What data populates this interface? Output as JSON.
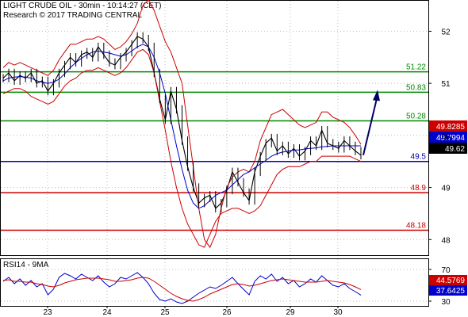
{
  "header": {
    "title": "LIGHT CRUDE OIL - 30min - 10:14:27 (CET)",
    "subtitle": "Research © 2017 TRADING CENTRAL"
  },
  "colors": {
    "price": "#000000",
    "bollinger": "#cc0000",
    "moving_average": "#0000cc",
    "resistance": "#008800",
    "pivot": "#0000aa",
    "support": "#cc0000",
    "arrow": "#000066",
    "grid": "#bbbbbb",
    "rsi": "#0000cc",
    "rsi_ma": "#cc0000"
  },
  "chart_data": [
    {
      "type": "line",
      "title": "LIGHT CRUDE OIL - 30min",
      "x_ticks": [
        "23",
        "24",
        "25",
        "26",
        "29",
        "30"
      ],
      "y_ticks": [
        48,
        49,
        50,
        51,
        52
      ],
      "ylim": [
        47.7,
        52.6
      ],
      "grid": true,
      "levels": [
        {
          "label": "51.22",
          "value": 51.22,
          "kind": "resistance"
        },
        {
          "label": "50.83",
          "value": 50.83,
          "kind": "resistance"
        },
        {
          "label": "50.28",
          "value": 50.28,
          "kind": "resistance"
        },
        {
          "label": "49.5",
          "value": 49.5,
          "kind": "pivot"
        },
        {
          "label": "48.9",
          "value": 48.9,
          "kind": "support"
        },
        {
          "label": "48.18",
          "value": 48.18,
          "kind": "support"
        }
      ],
      "price_tags": [
        {
          "label": "49.8285",
          "value": 49.8285,
          "kind": "bollinger-upper"
        },
        {
          "label": "49.7994",
          "value": 49.7994,
          "kind": "moving-average"
        },
        {
          "label": "49.62",
          "value": 49.62,
          "kind": "last-price"
        }
      ],
      "series": [
        {
          "values": [
            51.1,
            51.2,
            51.05,
            51.15,
            51.1,
            51.2,
            51.0,
            51.05,
            50.85,
            51.0,
            51.2,
            51.35,
            51.5,
            51.4,
            51.55,
            51.6,
            51.5,
            51.7,
            51.55,
            51.4,
            51.35,
            51.5,
            51.6,
            51.75,
            51.9,
            51.85,
            51.7,
            51.2,
            50.7,
            50.3,
            50.85,
            50.5,
            49.9,
            49.4,
            49.0,
            48.7,
            48.8,
            48.85,
            48.6,
            48.7,
            48.95,
            49.3,
            49.1,
            48.9,
            48.75,
            49.3,
            49.6,
            49.85,
            49.95,
            49.7,
            49.8,
            49.65,
            49.75,
            49.6,
            49.7,
            49.9,
            49.8,
            50.1,
            49.85,
            49.8,
            49.75,
            49.9,
            49.8,
            49.7,
            49.62
          ]
        },
        {
          "values": [
            51.3,
            51.4,
            51.35,
            51.4,
            51.35,
            51.3,
            51.25,
            51.2,
            51.15,
            51.25,
            51.45,
            51.6,
            51.75,
            51.75,
            51.8,
            51.85,
            51.85,
            51.9,
            51.85,
            51.75,
            51.65,
            51.7,
            51.8,
            51.95,
            52.15,
            52.5,
            52.6,
            52.4,
            52.1,
            51.8,
            51.6,
            51.3,
            51.0,
            50.2,
            49.4,
            48.6,
            48.0,
            47.85,
            48.1,
            48.6,
            49.0,
            49.2,
            49.3,
            49.35,
            49.3,
            49.5,
            49.9,
            50.15,
            50.4,
            50.45,
            50.5,
            50.4,
            50.3,
            50.2,
            50.15,
            50.2,
            50.25,
            50.45,
            50.45,
            50.35,
            50.3,
            50.25,
            50.15,
            50.0,
            49.8285
          ]
        },
        {
          "values": [
            50.8,
            50.85,
            50.9,
            50.9,
            50.85,
            50.75,
            50.7,
            50.65,
            50.6,
            50.65,
            50.8,
            50.95,
            51.05,
            51.1,
            51.2,
            51.25,
            51.25,
            51.3,
            51.25,
            51.2,
            51.15,
            51.2,
            51.3,
            51.45,
            51.6,
            51.65,
            51.55,
            51.2,
            50.65,
            50.1,
            49.5,
            49.0,
            48.6,
            48.3,
            48.1,
            47.9,
            47.85,
            48.1,
            48.35,
            48.5,
            48.55,
            48.6,
            48.6,
            48.55,
            48.5,
            48.55,
            48.65,
            48.85,
            49.05,
            49.25,
            49.35,
            49.4,
            49.4,
            49.4,
            49.45,
            49.5,
            49.5,
            49.6,
            49.6,
            49.6,
            49.6,
            49.6,
            49.6,
            49.55,
            49.5
          ]
        },
        {
          "values": [
            51.05,
            51.1,
            51.12,
            51.13,
            51.12,
            51.1,
            51.05,
            51.02,
            51.0,
            51.02,
            51.08,
            51.18,
            51.3,
            51.4,
            51.48,
            51.55,
            51.6,
            51.62,
            51.6,
            51.58,
            51.55,
            51.52,
            51.55,
            51.62,
            51.7,
            51.75,
            51.7,
            51.5,
            51.2,
            50.8,
            50.3,
            49.8,
            49.35,
            48.95,
            48.7,
            48.6,
            48.65,
            48.75,
            48.85,
            48.9,
            48.95,
            49.05,
            49.15,
            49.25,
            49.3,
            49.38,
            49.45,
            49.52,
            49.6,
            49.65,
            49.68,
            49.7,
            49.72,
            49.72,
            49.74,
            49.75,
            49.76,
            49.78,
            49.79,
            49.8,
            49.8,
            49.8,
            49.8,
            49.8,
            49.7994
          ]
        }
      ]
    },
    {
      "type": "line",
      "title": "RSI14 - 9MA",
      "y_ticks": [
        30,
        70
      ],
      "ylim": [
        24,
        84
      ],
      "grid": true,
      "price_tags": [
        {
          "label": "44.5769",
          "value": 44.5769,
          "kind": "rsi-ma"
        },
        {
          "label": "37.6425",
          "value": 37.6425,
          "kind": "rsi"
        }
      ],
      "series": [
        {
          "values": [
            55,
            60,
            52,
            58,
            50,
            56,
            48,
            52,
            38,
            45,
            60,
            65,
            62,
            58,
            64,
            60,
            56,
            62,
            54,
            48,
            52,
            60,
            58,
            62,
            66,
            60,
            52,
            40,
            32,
            30,
            33,
            29,
            27,
            30,
            35,
            40,
            44,
            48,
            46,
            50,
            55,
            60,
            52,
            45,
            38,
            55,
            62,
            58,
            64,
            55,
            60,
            52,
            56,
            48,
            52,
            58,
            54,
            62,
            56,
            50,
            48,
            52,
            46,
            42,
            37.6425
          ]
        },
        {
          "values": [
            56,
            57,
            55,
            55,
            54,
            54,
            52,
            51,
            49,
            48,
            50,
            53,
            55,
            57,
            58,
            59,
            59,
            59,
            58,
            57,
            55,
            55,
            56,
            57,
            59,
            60,
            59,
            55,
            50,
            45,
            40,
            36,
            33,
            31,
            30,
            32,
            35,
            39,
            42,
            45,
            48,
            51,
            52,
            51,
            49,
            50,
            52,
            54,
            56,
            57,
            58,
            57,
            56,
            55,
            54,
            54,
            54,
            55,
            56,
            55,
            54,
            53,
            51,
            48,
            44.5769
          ]
        }
      ]
    }
  ]
}
